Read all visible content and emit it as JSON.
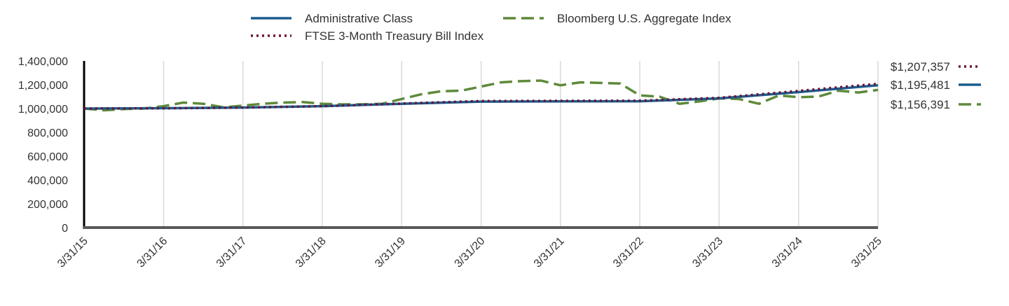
{
  "chart_data": {
    "type": "line",
    "title": "",
    "xlabel": "",
    "ylabel": "",
    "ylim": [
      0,
      1400000
    ],
    "yticks": [
      "1,400,000",
      "1,200,000",
      "1,000,000",
      "800,000",
      "600,000",
      "400,000",
      "200,000",
      "0"
    ],
    "xticks": [
      "3/31/15",
      "3/31/16",
      "3/31/17",
      "3/31/18",
      "3/31/19",
      "3/31/20",
      "3/31/21",
      "3/31/22",
      "3/31/23",
      "3/31/24",
      "3/31/25"
    ],
    "grid": "vertical",
    "legend": "top",
    "series": [
      {
        "name": "Administrative Class",
        "color": "#1a5d8f",
        "style": "solid",
        "end_label": "$1,195,481",
        "x": [
          "3/31/15",
          "3/31/16",
          "3/31/17",
          "3/31/18",
          "3/31/19",
          "3/31/20",
          "3/31/21",
          "3/31/22",
          "3/31/23",
          "3/31/24",
          "3/31/25"
        ],
        "values": [
          1000000,
          1003000,
          1008000,
          1020000,
          1040000,
          1058000,
          1060000,
          1061000,
          1085000,
          1138000,
          1195481
        ]
      },
      {
        "name": "Bloomberg U.S. Aggregate Index",
        "color": "#5e8a3a",
        "style": "dashed",
        "end_label": "$1,156,391",
        "x": [
          "3/31/15",
          "6/30/15",
          "9/30/15",
          "12/31/15",
          "3/31/16",
          "6/30/16",
          "9/30/16",
          "12/31/16",
          "3/31/17",
          "6/30/17",
          "9/30/17",
          "12/31/17",
          "3/31/18",
          "6/30/18",
          "9/30/18",
          "12/31/18",
          "3/31/19",
          "6/30/19",
          "9/30/19",
          "12/31/19",
          "3/31/20",
          "6/30/20",
          "9/30/20",
          "12/31/20",
          "3/31/21",
          "6/30/21",
          "9/30/21",
          "12/31/21",
          "3/31/22",
          "6/30/22",
          "9/30/22",
          "12/31/22",
          "3/31/23",
          "6/30/23",
          "9/30/23",
          "12/31/23",
          "3/31/24",
          "6/30/24",
          "9/30/24",
          "12/31/24",
          "3/31/25"
        ],
        "values": [
          1000000,
          985000,
          995000,
          1000000,
          1020000,
          1050000,
          1040000,
          1010000,
          1025000,
          1040000,
          1050000,
          1055000,
          1040000,
          1035000,
          1035000,
          1040000,
          1080000,
          1120000,
          1145000,
          1150000,
          1185000,
          1220000,
          1230000,
          1235000,
          1195000,
          1220000,
          1215000,
          1210000,
          1110000,
          1100000,
          1040000,
          1060000,
          1085000,
          1080000,
          1040000,
          1110000,
          1095000,
          1100000,
          1150000,
          1135000,
          1156391
        ]
      },
      {
        "name": "FTSE 3-Month Treasury Bill Index",
        "color": "#6b1436",
        "style": "dotted",
        "end_label": "$1,207,357",
        "x": [
          "3/31/15",
          "3/31/16",
          "3/31/17",
          "3/31/18",
          "3/31/19",
          "3/31/20",
          "3/31/21",
          "3/31/22",
          "3/31/23",
          "3/31/24",
          "3/31/25"
        ],
        "values": [
          1000000,
          1002000,
          1008000,
          1020000,
          1042000,
          1063000,
          1065000,
          1066000,
          1090000,
          1148000,
          1207357
        ]
      }
    ]
  }
}
